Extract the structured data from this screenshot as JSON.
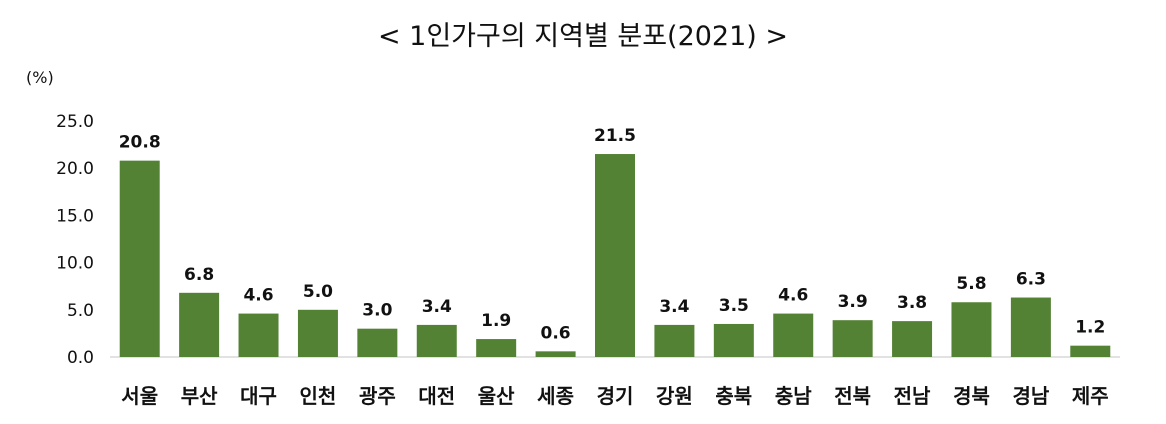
{
  "chart_data": {
    "type": "bar",
    "title": "< 1인가구의 지역별 분포(2021) >",
    "unit": "(%)",
    "categories": [
      "서울",
      "부산",
      "대구",
      "인천",
      "광주",
      "대전",
      "울산",
      "세종",
      "경기",
      "강원",
      "충북",
      "충남",
      "전북",
      "전남",
      "경북",
      "경남",
      "제주"
    ],
    "values": [
      20.8,
      6.8,
      4.6,
      5.0,
      3.0,
      3.4,
      1.9,
      0.6,
      21.5,
      3.4,
      3.5,
      4.6,
      3.9,
      3.8,
      5.8,
      6.3,
      1.2
    ],
    "value_labels": [
      "20.8",
      "6.8",
      "4.6",
      "5.0",
      "3.0",
      "3.4",
      "1.9",
      "0.6",
      "21.5",
      "3.4",
      "3.5",
      "4.6",
      "3.9",
      "3.8",
      "5.8",
      "6.3",
      "1.2"
    ],
    "yticks": [
      "0.0",
      "5.0",
      "10.0",
      "15.0",
      "20.0",
      "25.0"
    ],
    "ylim": [
      0,
      25
    ],
    "bar_color": "#548235",
    "grid": false,
    "legend": "none"
  }
}
